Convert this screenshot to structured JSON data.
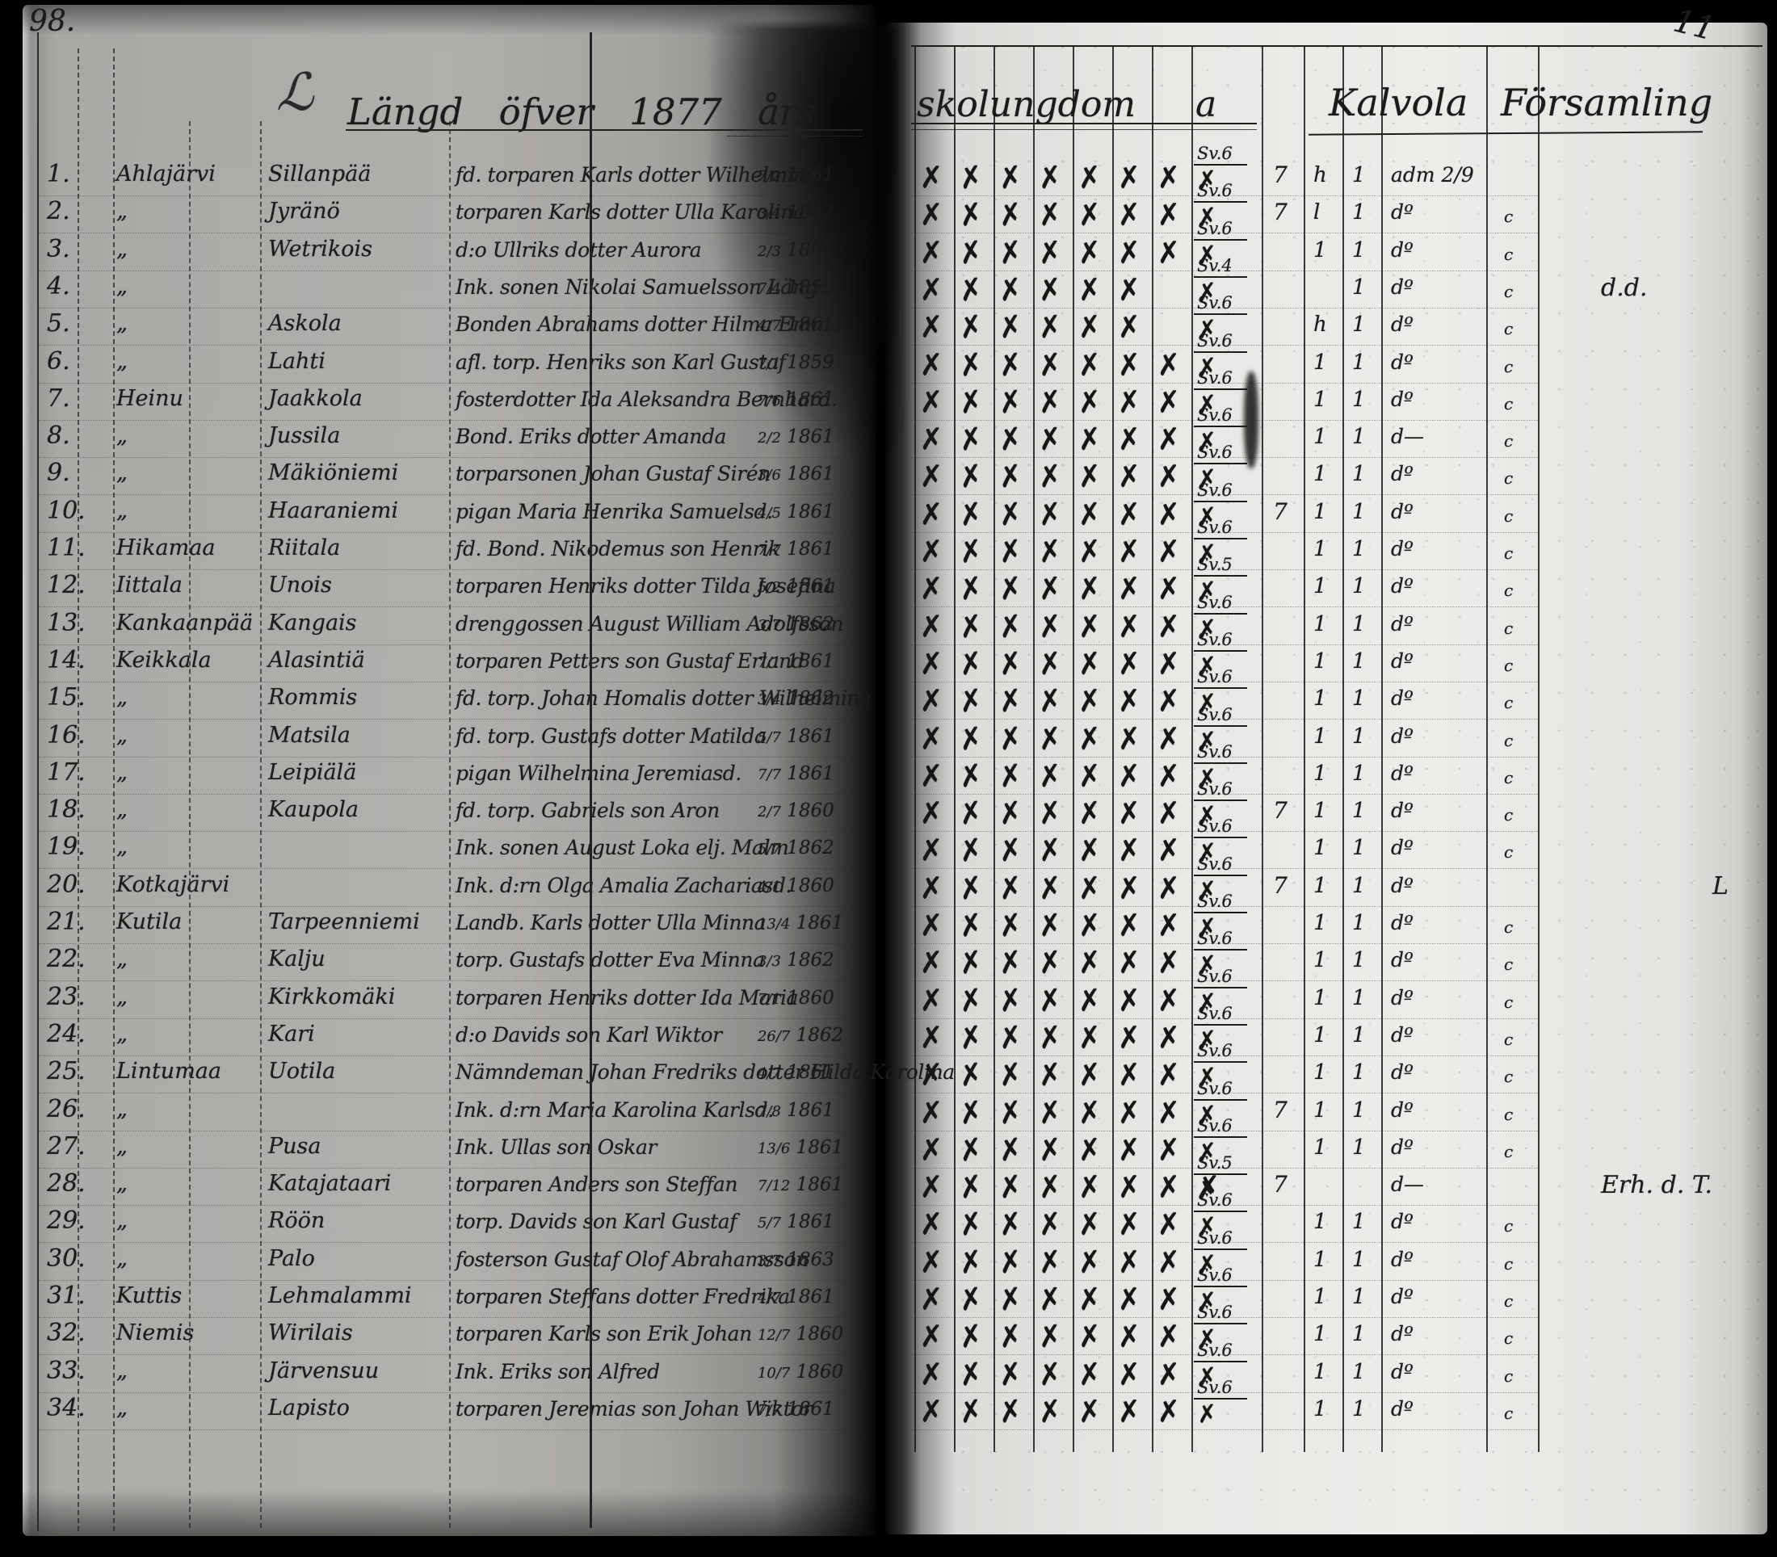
{
  "document": {
    "left_page_number": "98.",
    "right_page_number": "11",
    "ornament": "ℒ",
    "title": {
      "left": "Längd öfver 1877 års",
      "mid": "skolungdom a",
      "right": "Kalvola Församling"
    }
  },
  "register_rows": [
    {
      "no": "1.",
      "village": "Ahlajärvi",
      "farm": "Sillanpää",
      "desc": "fd. torparen Karls dotter Wilhelmina",
      "date": "7/2 1861",
      "checks": 7,
      "grade": "Sv.6",
      "c7": "7",
      "c8": "h",
      "c9": "1",
      "adm": "adm 2/9",
      "tail": "",
      "note": ""
    },
    {
      "no": "2.",
      "village": "„",
      "farm": "Jyränö",
      "desc": "torparen Karls dotter Ulla Karolina",
      "date": "3/4 1862",
      "checks": 7,
      "grade": "Sv.6",
      "c7": "7",
      "c8": "l",
      "c9": "1",
      "adm": "dº",
      "tail": "c",
      "note": ""
    },
    {
      "no": "3.",
      "village": "„",
      "farm": "Wetrikois",
      "desc": "d:o Ullriks dotter Aurora",
      "date": "2/3 1861",
      "checks": 7,
      "grade": "Sv.6",
      "c7": "",
      "c8": "1",
      "c9": "1",
      "adm": "dº",
      "tail": "c",
      "note": ""
    },
    {
      "no": "4.",
      "village": "„",
      "farm": "",
      "desc": "Ink. sonen Nikolai Samuelsson Läng",
      "date": "7/4 1859",
      "checks": 6,
      "grade": "Sv.4",
      "c7": "",
      "c8": "",
      "c9": "1",
      "adm": "dº",
      "tail": "c",
      "note": "d.d."
    },
    {
      "no": "5.",
      "village": "„",
      "farm": "Askola",
      "desc": "Bonden Abrahams dotter Hilma Emma",
      "date": "4/7 1861",
      "checks": 6,
      "grade": "Sv.6",
      "c7": "",
      "c8": "h",
      "c9": "1",
      "adm": "dº",
      "tail": "c",
      "note": ""
    },
    {
      "no": "6.",
      "village": "„",
      "farm": "Lahti",
      "desc": "afl. torp. Henriks son Karl Gustaf",
      "date": "7/1 1859",
      "checks": 7,
      "grade": "Sv.6",
      "c7": "",
      "c8": "1",
      "c9": "1",
      "adm": "dº",
      "tail": "c",
      "note": ""
    },
    {
      "no": "7.",
      "village": "Heinu",
      "farm": "Jaakkola",
      "desc": "fosterdotter Ida Aleksandra Bernhard.",
      "date": "7/6 1861",
      "checks": 7,
      "grade": "Sv.6",
      "c7": "",
      "c8": "1",
      "c9": "1",
      "adm": "dº",
      "tail": "c",
      "note": ""
    },
    {
      "no": "8.",
      "village": "„",
      "farm": "Jussila",
      "desc": "Bond. Eriks dotter Amanda",
      "date": "2/2 1861",
      "checks": 7,
      "grade": "Sv.6",
      "c7": "",
      "c8": "1",
      "c9": "1",
      "adm": "d—",
      "tail": "c",
      "note": ""
    },
    {
      "no": "9.",
      "village": "„",
      "farm": "Mäkiöniemi",
      "desc": "torparsonen Johan Gustaf Sirén",
      "date": "3/6 1861",
      "checks": 7,
      "grade": "Sv.6",
      "c7": "",
      "c8": "1",
      "c9": "1",
      "adm": "dº",
      "tail": "c",
      "note": ""
    },
    {
      "no": "10.",
      "village": "„",
      "farm": "Haaraniemi",
      "desc": "pigan Maria Henrika Samuelsd.",
      "date": "4/5 1861",
      "checks": 7,
      "grade": "Sv.6",
      "c7": "7",
      "c8": "1",
      "c9": "1",
      "adm": "dº",
      "tail": "c",
      "note": ""
    },
    {
      "no": "11.",
      "village": "Hikamaa",
      "farm": "Riitala",
      "desc": "fd. Bond. Nikodemus son Henrik",
      "date": "7/7 1861",
      "checks": 7,
      "grade": "Sv.6",
      "c7": "",
      "c8": "1",
      "c9": "1",
      "adm": "dº",
      "tail": "c",
      "note": ""
    },
    {
      "no": "12.",
      "village": "Iittala",
      "farm": "Unois",
      "desc": "torparen Henriks dotter Tilda Josefina",
      "date": "5/2 1861",
      "checks": 7,
      "grade": "Sv.5",
      "c7": "",
      "c8": "1",
      "c9": "1",
      "adm": "dº",
      "tail": "c",
      "note": ""
    },
    {
      "no": "13.",
      "village": "Kankaanpää",
      "farm": "Kangais",
      "desc": "drenggossen August William Adolfsson",
      "date": "3/7 1862",
      "checks": 7,
      "grade": "Sv.6",
      "c7": "",
      "c8": "1",
      "c9": "1",
      "adm": "dº",
      "tail": "c",
      "note": ""
    },
    {
      "no": "14.",
      "village": "Keikkala",
      "farm": "Alasintiä",
      "desc": "torparen Petters son Gustaf Erland",
      "date": "7/1 1861",
      "checks": 7,
      "grade": "Sv.6",
      "c7": "",
      "c8": "1",
      "c9": "1",
      "adm": "dº",
      "tail": "c",
      "note": ""
    },
    {
      "no": "15.",
      "village": "„",
      "farm": "Rommis",
      "desc": "fd. torp. Johan Homalis dotter Wilhelmina",
      "date": "3/4 1862",
      "checks": 7,
      "grade": "Sv.6",
      "c7": "",
      "c8": "1",
      "c9": "1",
      "adm": "dº",
      "tail": "c",
      "note": ""
    },
    {
      "no": "16.",
      "village": "„",
      "farm": "Matsila",
      "desc": "fd. torp. Gustafs dotter Matilda",
      "date": "5/7 1861",
      "checks": 7,
      "grade": "Sv.6",
      "c7": "",
      "c8": "1",
      "c9": "1",
      "adm": "dº",
      "tail": "c",
      "note": ""
    },
    {
      "no": "17.",
      "village": "„",
      "farm": "Leipiälä",
      "desc": "pigan Wilhelmina Jeremiasd.",
      "date": "7/7 1861",
      "checks": 7,
      "grade": "Sv.6",
      "c7": "",
      "c8": "1",
      "c9": "1",
      "adm": "dº",
      "tail": "c",
      "note": ""
    },
    {
      "no": "18.",
      "village": "„",
      "farm": "Kaupola",
      "desc": "fd. torp. Gabriels son Aron",
      "date": "2/7 1860",
      "checks": 7,
      "grade": "Sv.6",
      "c7": "7",
      "c8": "1",
      "c9": "1",
      "adm": "dº",
      "tail": "c",
      "note": ""
    },
    {
      "no": "19.",
      "village": "„",
      "farm": "",
      "desc": "Ink. sonen August Loka elj. Malm",
      "date": "5/7 1862",
      "checks": 7,
      "grade": "Sv.6",
      "c7": "",
      "c8": "1",
      "c9": "1",
      "adm": "dº",
      "tail": "c",
      "note": ""
    },
    {
      "no": "20.",
      "village": "Kotkajärvi",
      "farm": "",
      "desc": "Ink. d:rn Olga Amalia Zachariasd.",
      "date": "4/1 1860",
      "checks": 7,
      "grade": "Sv.6",
      "c7": "7",
      "c8": "1",
      "c9": "1",
      "adm": "dº",
      "tail": "",
      "note": "L"
    },
    {
      "no": "21.",
      "village": "Kutila",
      "farm": "Tarpeenniemi",
      "desc": "Landb. Karls dotter Ulla Minna",
      "date": "13/4 1861",
      "checks": 7,
      "grade": "Sv.6",
      "c7": "",
      "c8": "1",
      "c9": "1",
      "adm": "dº",
      "tail": "c",
      "note": ""
    },
    {
      "no": "22.",
      "village": "„",
      "farm": "Kalju",
      "desc": "torp. Gustafs dotter Eva Minna",
      "date": "3/3 1862",
      "checks": 7,
      "grade": "Sv.6",
      "c7": "",
      "c8": "1",
      "c9": "1",
      "adm": "dº",
      "tail": "c",
      "note": ""
    },
    {
      "no": "23.",
      "village": "„",
      "farm": "Kirkkomäki",
      "desc": "torparen Henriks dotter Ida Maria",
      "date": "7/1 1860",
      "checks": 7,
      "grade": "Sv.6",
      "c7": "",
      "c8": "1",
      "c9": "1",
      "adm": "dº",
      "tail": "c",
      "note": ""
    },
    {
      "no": "24.",
      "village": "„",
      "farm": "Kari",
      "desc": "d:o Davids son Karl Wiktor",
      "date": "26/7 1862",
      "checks": 7,
      "grade": "Sv.6",
      "c7": "",
      "c8": "1",
      "c9": "1",
      "adm": "dº",
      "tail": "c",
      "note": ""
    },
    {
      "no": "25.",
      "village": "Lintumaa",
      "farm": "Uotila",
      "desc": "Nämndeman Johan Fredriks dotter Hilda Karolina",
      "date": "4/7 1861",
      "checks": 7,
      "grade": "Sv.6",
      "c7": "",
      "c8": "1",
      "c9": "1",
      "adm": "dº",
      "tail": "c",
      "note": ""
    },
    {
      "no": "26.",
      "village": "„",
      "farm": "",
      "desc": "Ink. d:rn Maria Karolina Karlsd.",
      "date": "7/8 1861",
      "checks": 7,
      "grade": "Sv.6",
      "c7": "7",
      "c8": "1",
      "c9": "1",
      "adm": "dº",
      "tail": "c",
      "note": ""
    },
    {
      "no": "27.",
      "village": "„",
      "farm": "Pusa",
      "desc": "Ink. Ullas son Oskar",
      "date": "13/6 1861",
      "checks": 7,
      "grade": "Sv.6",
      "c7": "",
      "c8": "1",
      "c9": "1",
      "adm": "dº",
      "tail": "c",
      "note": ""
    },
    {
      "no": "28.",
      "village": "„",
      "farm": "Katajataari",
      "desc": "torparen Anders son Steffan",
      "date": "7/12 1861",
      "checks": 8,
      "grade": "Sv.5",
      "c7": "7",
      "c8": "",
      "c9": "",
      "adm": "d—",
      "tail": "",
      "note": "Erh. d. T."
    },
    {
      "no": "29.",
      "village": "„",
      "farm": "Röön",
      "desc": "torp. Davids son Karl Gustaf",
      "date": "5/7 1861",
      "checks": 7,
      "grade": "Sv.6",
      "c7": "",
      "c8": "1",
      "c9": "1",
      "adm": "dº",
      "tail": "c",
      "note": ""
    },
    {
      "no": "30.",
      "village": "„",
      "farm": "Palo",
      "desc": "fosterson Gustaf Olof Abrahamsson",
      "date": "3/7 1863",
      "checks": 7,
      "grade": "Sv.6",
      "c7": "",
      "c8": "1",
      "c9": "1",
      "adm": "dº",
      "tail": "c",
      "note": ""
    },
    {
      "no": "31.",
      "village": "Kuttis",
      "farm": "Lehmalammi",
      "desc": "torparen Steffans dotter Fredrika",
      "date": "4/7 1861",
      "checks": 7,
      "grade": "Sv.6",
      "c7": "",
      "c8": "1",
      "c9": "1",
      "adm": "dº",
      "tail": "c",
      "note": ""
    },
    {
      "no": "32.",
      "village": "Niemis",
      "farm": "Wirilais",
      "desc": "torparen Karls son Erik Johan",
      "date": "12/7 1860",
      "checks": 7,
      "grade": "Sv.6",
      "c7": "",
      "c8": "1",
      "c9": "1",
      "adm": "dº",
      "tail": "c",
      "note": ""
    },
    {
      "no": "33.",
      "village": "„",
      "farm": "Järvensuu",
      "desc": "Ink. Eriks son Alfred",
      "date": "10/7 1860",
      "checks": 7,
      "grade": "Sv.6",
      "c7": "",
      "c8": "1",
      "c9": "1",
      "adm": "dº",
      "tail": "c",
      "note": ""
    },
    {
      "no": "34.",
      "village": "„",
      "farm": "Lapisto",
      "desc": "torparen Jeremias son Johan Wiktor",
      "date": "7/7 1861",
      "checks": 7,
      "grade": "Sv.6",
      "c7": "",
      "c8": "1",
      "c9": "1",
      "adm": "dº",
      "tail": "c",
      "note": ""
    }
  ]
}
